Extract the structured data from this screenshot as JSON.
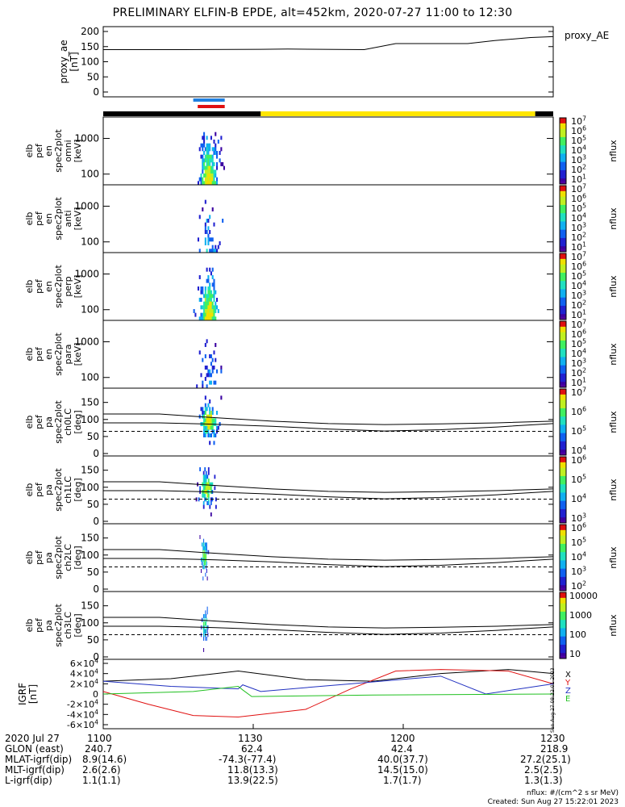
{
  "title": "PRELIMINARY ELFIN-B EPDE, alt=452km, 2020-07-27 11:00 to 12:30",
  "colors": {
    "black": "#000000",
    "yellow": "#ffe600",
    "blue": "#1e7fe0",
    "red": "#e01010",
    "grf_x": "#000000",
    "grf_y": "#e01010",
    "grf_z": "#2030c0",
    "grf_e": "#20c020",
    "ae": "#000000"
  },
  "bars": {
    "orbit_segments": [
      {
        "color": "black",
        "from": 0,
        "to": 0.35
      },
      {
        "color": "yellow",
        "from": 0.35,
        "to": 0.96
      },
      {
        "color": "black",
        "from": 0.96,
        "to": 1
      }
    ],
    "science_zones": [
      {
        "color": "blue",
        "from": 0.2,
        "to": 0.27
      },
      {
        "color": "red",
        "from": 0.21,
        "to": 0.27
      }
    ]
  },
  "footer": {
    "rows": [
      {
        "label": "2020 Jul 27",
        "values": [
          "1100",
          "1130",
          "1200",
          "1230"
        ]
      },
      {
        "label": "GLON (east)",
        "values": [
          "240.7",
          "62.4",
          "42.4",
          "218.9"
        ]
      },
      {
        "label": "MLAT-igrf(dip)",
        "values": [
          "8.9(14.6)",
          "-74.3(-77.4)",
          "40.0(37.7)",
          "27.2(25.1)"
        ]
      },
      {
        "label": "MLT-igrf(dip)",
        "values": [
          "2.6(2.6)",
          "11.8(13.3)",
          "14.5(15.0)",
          "2.5(2.5)"
        ]
      },
      {
        "label": "L-igrf(dip)",
        "values": [
          "1.1(1.1)",
          "13.9(22.5)",
          "1.7(1.7)",
          "1.3(1.3)"
        ]
      }
    ],
    "nflux_note": "nflux: #/(cm^2 s sr MeV)",
    "created": "Created: Sun Aug 27 15:22:01 2023",
    "side_stamp": "Sun Aug 27 08:22:01 2023"
  },
  "chart_data": [
    {
      "type": "line",
      "id": "proxy_ae",
      "ylabel": [
        "proxy_ae",
        "[nT]"
      ],
      "legend": "proxy_AE",
      "ylim": [
        0,
        200
      ],
      "yticks": [
        0,
        50,
        100,
        150,
        200
      ],
      "x": [
        0,
        0.18,
        0.35,
        0.41,
        0.58,
        0.65,
        0.81,
        0.87,
        0.95,
        1
      ],
      "series": [
        {
          "values": [
            140,
            140,
            141,
            142,
            140,
            160,
            160,
            170,
            180,
            183
          ]
        }
      ]
    },
    {
      "type": "heatmap",
      "id": "spec_omni",
      "ylabel": [
        "elb",
        "pef",
        "en",
        "spec2plot",
        "omni",
        "[keV]"
      ],
      "ylog": true,
      "yticks": [
        100,
        1000
      ],
      "colorbar": "nflux",
      "cbar_labels": [
        "10^7",
        "10^6",
        "10^5",
        "10^4",
        "10^3",
        "10^2",
        "10^1"
      ],
      "active_time": [
        0.2,
        0.27
      ],
      "intensity": 0.9
    },
    {
      "type": "heatmap",
      "id": "spec_anti",
      "ylabel": [
        "elb",
        "pef",
        "en",
        "spec2plot",
        "anti",
        "[keV]"
      ],
      "ylog": true,
      "yticks": [
        100,
        1000
      ],
      "colorbar": "nflux",
      "cbar_labels": [
        "10^7",
        "10^6",
        "10^5",
        "10^4",
        "10^3",
        "10^2",
        "10^1"
      ],
      "active_time": [
        0.2,
        0.27
      ],
      "intensity": 0.3
    },
    {
      "type": "heatmap",
      "id": "spec_perp",
      "ylabel": [
        "elb",
        "pef",
        "en",
        "spec2plot",
        "perp",
        "[keV]"
      ],
      "ylog": true,
      "yticks": [
        100,
        1000
      ],
      "colorbar": "nflux",
      "cbar_labels": [
        "10^7",
        "10^6",
        "10^5",
        "10^4",
        "10^3",
        "10^2",
        "10^1"
      ],
      "active_time": [
        0.2,
        0.27
      ],
      "intensity": 0.9
    },
    {
      "type": "heatmap",
      "id": "spec_para",
      "ylabel": [
        "elb",
        "pef",
        "en",
        "spec2plot",
        "para",
        "[keV]"
      ],
      "ylog": true,
      "yticks": [
        100,
        1000
      ],
      "colorbar": "nflux",
      "cbar_labels": [
        "10^7",
        "10^6",
        "10^5",
        "10^4",
        "10^3",
        "10^2",
        "10^1"
      ],
      "active_time": [
        0.2,
        0.27
      ],
      "intensity": 0.25
    },
    {
      "type": "heatmap",
      "id": "pa_ch0",
      "ylabel": [
        "elb",
        "pef",
        "pa",
        "spec2plot",
        "ch0LC",
        "[deg]"
      ],
      "ylim": [
        0,
        180
      ],
      "yticks": [
        0,
        50,
        100,
        150
      ],
      "colorbar": "nflux",
      "cbar_labels": [
        "10^7",
        "10^6",
        "10^5",
        "10^4"
      ],
      "active_time": [
        0.2,
        0.27
      ],
      "intensity": 0.8,
      "lc_upper": [
        116,
        116,
        105,
        95,
        88,
        85,
        87,
        90,
        95
      ],
      "lc_lower": [
        90,
        90,
        86,
        80,
        72,
        66,
        70,
        78,
        88
      ],
      "dashed": 65
    },
    {
      "type": "heatmap",
      "id": "pa_ch1",
      "ylabel": [
        "elb",
        "pef",
        "pa",
        "spec2plot",
        "ch1LC",
        "[deg]"
      ],
      "ylim": [
        0,
        180
      ],
      "yticks": [
        0,
        50,
        100,
        150
      ],
      "colorbar": "nflux",
      "cbar_labels": [
        "10^6",
        "10^5",
        "10^4",
        "10^3"
      ],
      "active_time": [
        0.2,
        0.26
      ],
      "intensity": 0.7,
      "lc_upper": [
        116,
        116,
        105,
        95,
        88,
        85,
        87,
        90,
        95
      ],
      "lc_lower": [
        90,
        90,
        86,
        80,
        72,
        66,
        70,
        78,
        88
      ],
      "dashed": 65
    },
    {
      "type": "heatmap",
      "id": "pa_ch2",
      "ylabel": [
        "elb",
        "pef",
        "pa",
        "spec2plot",
        "ch2LC",
        "[deg]"
      ],
      "ylim": [
        0,
        180
      ],
      "yticks": [
        0,
        50,
        100,
        150
      ],
      "colorbar": "nflux",
      "cbar_labels": [
        "10^6",
        "10^5",
        "10^4",
        "10^3",
        "10^2"
      ],
      "active_time": [
        0.21,
        0.24
      ],
      "intensity": 0.6,
      "lc_upper": [
        116,
        116,
        105,
        95,
        88,
        85,
        87,
        90,
        95
      ],
      "lc_lower": [
        90,
        90,
        86,
        80,
        72,
        66,
        70,
        78,
        88
      ],
      "dashed": 65
    },
    {
      "type": "heatmap",
      "id": "pa_ch3",
      "ylabel": [
        "elb",
        "pef",
        "pa",
        "spec2plot",
        "ch3LC",
        "[deg]"
      ],
      "ylim": [
        0,
        180
      ],
      "yticks": [
        0,
        50,
        100,
        150
      ],
      "colorbar": "nflux",
      "cbar_labels": [
        "10000",
        "1000",
        "100",
        "10"
      ],
      "active_time": [
        0.21,
        0.24
      ],
      "intensity": 0.5,
      "lc_upper": [
        116,
        116,
        105,
        95,
        88,
        85,
        87,
        90,
        95
      ],
      "lc_lower": [
        90,
        90,
        86,
        80,
        72,
        66,
        70,
        78,
        88
      ],
      "dashed": 65
    },
    {
      "type": "line",
      "id": "igrf",
      "ylabel": [
        "IGRF",
        "[nT]"
      ],
      "ylim": [
        -60000,
        60000
      ],
      "yticks": [
        "6×10^4",
        "4×10^4",
        "2×10^4",
        "0",
        "-2×10^4",
        "-4×10^4",
        "-6×10^4"
      ],
      "legend": [
        "X",
        "Y",
        "Z",
        "E"
      ],
      "series": [
        {
          "name": "X",
          "x": [
            0,
            0.15,
            0.3,
            0.45,
            0.6,
            0.75,
            0.9,
            1
          ],
          "values": [
            25000,
            30000,
            45000,
            28000,
            25000,
            40000,
            48000,
            40000
          ]
        },
        {
          "name": "Y",
          "x": [
            0,
            0.1,
            0.2,
            0.3,
            0.45,
            0.55,
            0.65,
            0.75,
            0.9,
            1
          ],
          "values": [
            5000,
            -20000,
            -42000,
            -45000,
            -30000,
            10000,
            45000,
            48000,
            45000,
            20000
          ]
        },
        {
          "name": "Z",
          "x": [
            0,
            0.15,
            0.3,
            0.31,
            0.35,
            0.55,
            0.75,
            0.85,
            1
          ],
          "values": [
            25000,
            15000,
            10000,
            18000,
            5000,
            20000,
            35000,
            0,
            20000
          ]
        },
        {
          "name": "E",
          "x": [
            0,
            0.2,
            0.3,
            0.31,
            0.33,
            0.6,
            1
          ],
          "values": [
            0,
            5000,
            15000,
            8000,
            -5000,
            -2000,
            0
          ]
        }
      ]
    }
  ]
}
